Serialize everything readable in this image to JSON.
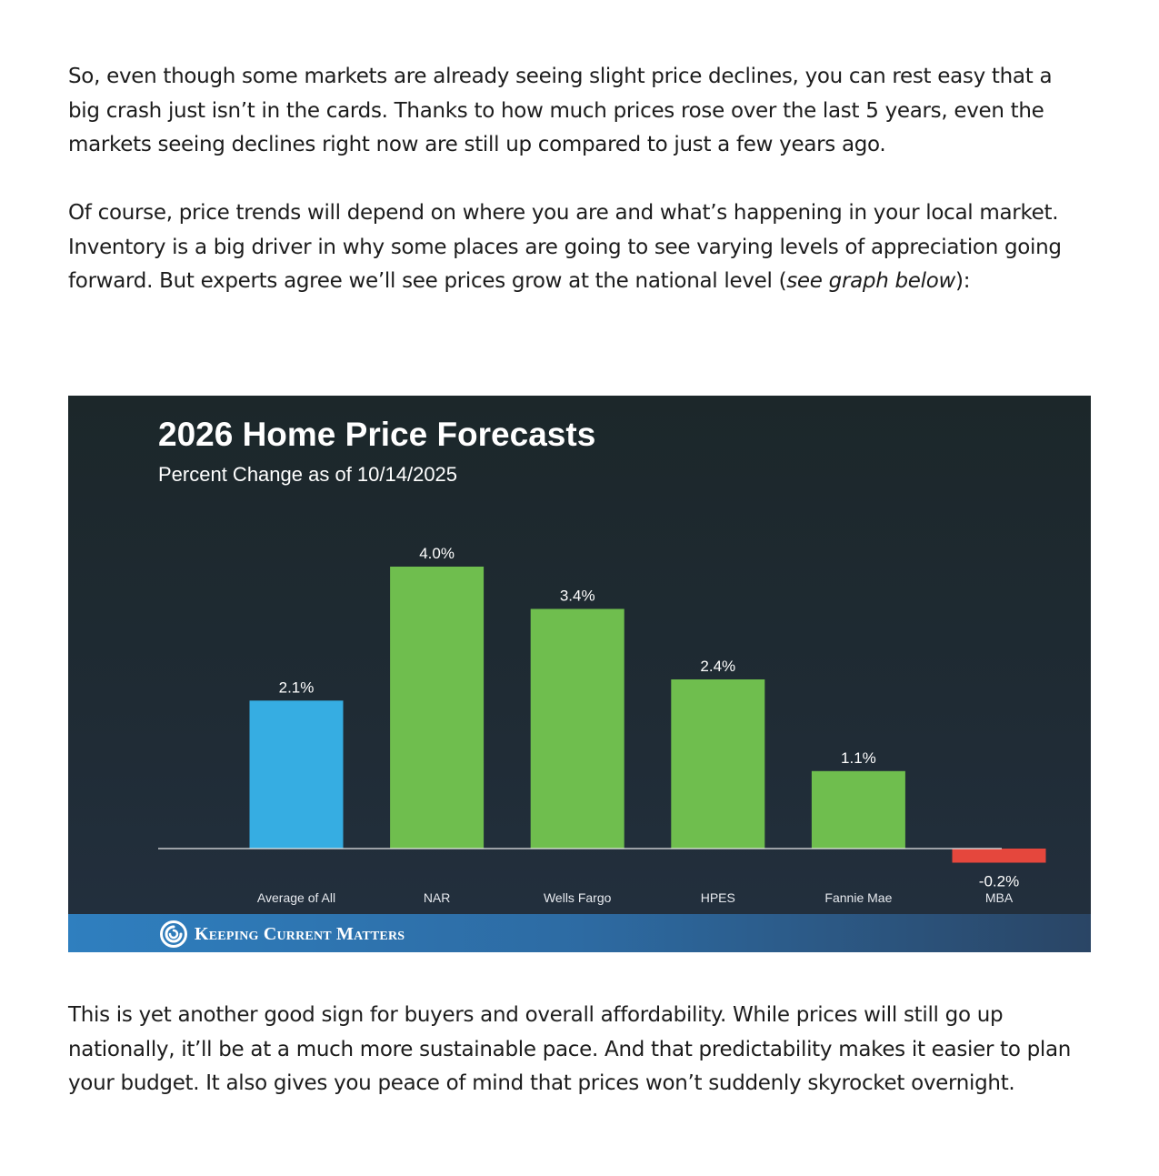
{
  "paragraphs": {
    "p1": "So, even though some markets are already seeing slight price declines, you can rest easy that a big crash just isn’t in the cards. Thanks to how much prices rose over the last 5 years, even the markets seeing declines right now are still up compared to just a few years ago.",
    "p2_main": "Of course, price trends will depend on where you are and what’s happening in your local market. Inventory is a big driver in why some places are going to see varying levels of appreciation going forward. But experts agree we’ll see prices grow at the national level (",
    "p2_italic": "see graph below",
    "p2_end": "):",
    "p3": "This is yet another good sign for buyers and overall affordability. While prices will still go up nationally, it’ll be at a much more sustainable pace. And that predictability makes it easier to plan your budget. It also gives you peace of mind that prices won’t suddenly skyrocket overnight."
  },
  "chart_data": {
    "type": "bar",
    "title": "2026 Home Price Forecasts",
    "subtitle": "Percent Change as of 10/14/2025",
    "categories": [
      "Average of All",
      "NAR",
      "Wells Fargo",
      "HPES",
      "Fannie Mae",
      "MBA"
    ],
    "values": [
      2.1,
      4.0,
      3.4,
      2.4,
      1.1,
      -0.2
    ],
    "value_labels": [
      "2.1%",
      "4.0%",
      "3.4%",
      "2.4%",
      "1.1%",
      "-0.2%"
    ],
    "colors": [
      "#36ade2",
      "#6fbe4e",
      "#6fbe4e",
      "#6fbe4e",
      "#6fbe4e",
      "#e5473d"
    ],
    "ylim": [
      -0.2,
      4.0
    ],
    "grid": false,
    "legend": "none"
  },
  "footer": {
    "brand": "Keeping Current Matters",
    "logo_icon": "swirl-logo-icon"
  }
}
